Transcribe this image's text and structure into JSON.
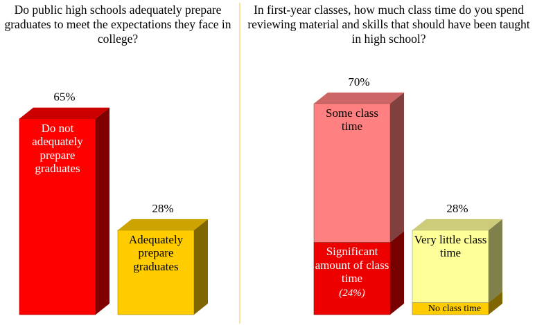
{
  "chart_data": [
    {
      "type": "bar",
      "title": "Do public high schools adequately prepare graduates to meet the expectations they face in college?",
      "categories": [
        "Do not adequately prepare graduates",
        "Adequately prepare graduates"
      ],
      "values": [
        65,
        28
      ],
      "value_labels": [
        "65%",
        "28%"
      ],
      "colors": [
        "#ff0000",
        "#ffcc00"
      ],
      "label_colors": [
        "#ffffff",
        "#000000"
      ]
    },
    {
      "type": "stacked_bar",
      "title": "In first-year classes, how much class time do you spend reviewing material and skills that should have been taught in high school?",
      "bars": [
        {
          "total": 70,
          "total_label": "70%",
          "segments": [
            {
              "name": "Significant amount of class time",
              "value": 24,
              "value_label": "(24%)",
              "color": "#ee0000",
              "label_color": "#ffffff"
            },
            {
              "name": "Some class time",
              "value": 46,
              "color": "#ff8080",
              "label_color": "#000000"
            }
          ]
        },
        {
          "total": 28,
          "total_label": "28%",
          "segments": [
            {
              "name": "No class time",
              "value": 4,
              "color": "#ffcc00",
              "label_color": "#000000"
            },
            {
              "name": "Very little class time",
              "value": 24,
              "color": "#ffff99",
              "label_color": "#000000"
            }
          ]
        }
      ]
    }
  ]
}
